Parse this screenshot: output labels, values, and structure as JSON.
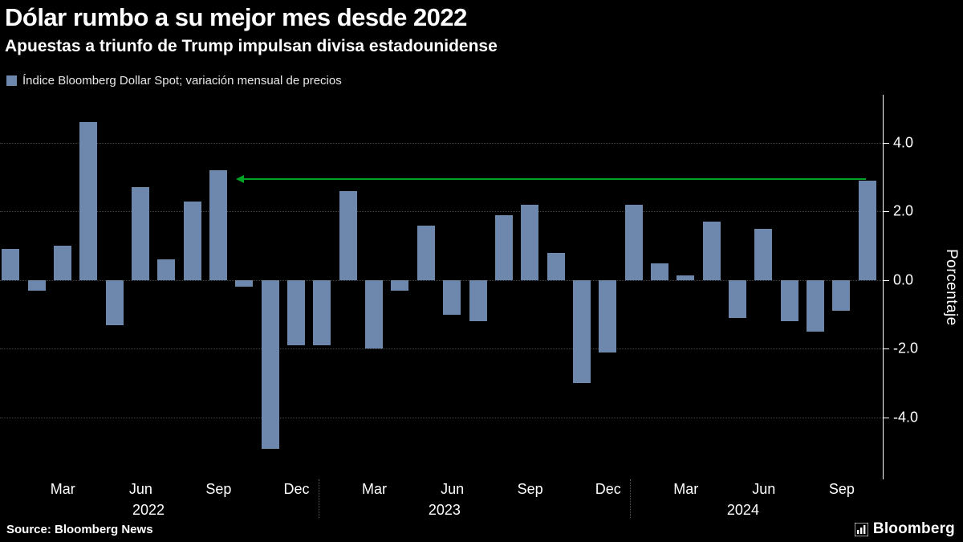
{
  "header": {
    "title": "Dólar rumbo a su mejor mes desde 2022",
    "subtitle": "Apuestas a triunfo de Trump impulsan divisa estadounidense"
  },
  "legend": {
    "label": "Índice Bloomberg Dollar Spot; variación mensual de precios",
    "swatch_color": "#6d87ad"
  },
  "footer": {
    "source": "Source: Bloomberg News",
    "logo_text": "Bloomberg",
    "logo_icon": "bloomberg-terminal-icon"
  },
  "colors": {
    "background": "#000000",
    "bar": "#6d87ad",
    "text": "#ffffff",
    "grid": "#424242",
    "axis": "#ffffff",
    "arrow": "#00a326"
  },
  "chart_data": {
    "type": "bar",
    "title": "Dólar rumbo a su mejor mes desde 2022",
    "subtitle": "Apuestas a triunfo de Trump impulsan divisa estadounidense",
    "legend": "Índice Bloomberg Dollar Spot; variación mensual de precios",
    "ylabel": "Porcentaje",
    "x": [
      "2022-01",
      "2022-02",
      "2022-03",
      "2022-04",
      "2022-05",
      "2022-06",
      "2022-07",
      "2022-08",
      "2022-09",
      "2022-10",
      "2022-11",
      "2022-12",
      "2023-01",
      "2023-02",
      "2023-03",
      "2023-04",
      "2023-05",
      "2023-06",
      "2023-07",
      "2023-08",
      "2023-09",
      "2023-10",
      "2023-11",
      "2023-12",
      "2024-01",
      "2024-02",
      "2024-03",
      "2024-04",
      "2024-05",
      "2024-06",
      "2024-07",
      "2024-08",
      "2024-09",
      "2024-10"
    ],
    "values": [
      0.9,
      -0.3,
      1.0,
      4.6,
      -1.3,
      2.7,
      0.6,
      2.3,
      3.2,
      -0.2,
      -4.9,
      -1.9,
      -1.9,
      2.6,
      -2.0,
      -0.3,
      1.6,
      -1.0,
      -1.2,
      1.9,
      2.2,
      0.8,
      -3.0,
      -2.1,
      2.2,
      0.5,
      0.15,
      1.7,
      -1.1,
      1.5,
      -1.2,
      -1.5,
      -0.9,
      2.9
    ],
    "ylim": [
      -5.8,
      5.4
    ],
    "y_ticks": [
      4.0,
      2.0,
      0.0,
      -2.0,
      -4.0
    ],
    "y_tick_labels": [
      "4.0",
      "2.0",
      "0.0",
      "-2.0",
      "-4.0"
    ],
    "x_ticks": [
      {
        "i": 2,
        "label": "Mar"
      },
      {
        "i": 5,
        "label": "Jun"
      },
      {
        "i": 8,
        "label": "Sep"
      },
      {
        "i": 11,
        "label": "Dec"
      },
      {
        "i": 14,
        "label": "Mar"
      },
      {
        "i": 17,
        "label": "Jun"
      },
      {
        "i": 20,
        "label": "Sep"
      },
      {
        "i": 23,
        "label": "Dec"
      },
      {
        "i": 26,
        "label": "Mar"
      },
      {
        "i": 29,
        "label": "Jun"
      },
      {
        "i": 32,
        "label": "Sep"
      }
    ],
    "year_labels": [
      {
        "i": 5.3,
        "label": "2022"
      },
      {
        "i": 16.7,
        "label": "2023"
      },
      {
        "i": 28.2,
        "label": "2024"
      }
    ],
    "year_separators": [
      11.85,
      23.85
    ],
    "annotation": {
      "type": "left-arrow",
      "value": 2.95,
      "from_i": 9.35,
      "to_i": 33.35,
      "color": "#00a326"
    },
    "grid": true,
    "legend_position": "top-left",
    "y_axis_side": "right"
  }
}
